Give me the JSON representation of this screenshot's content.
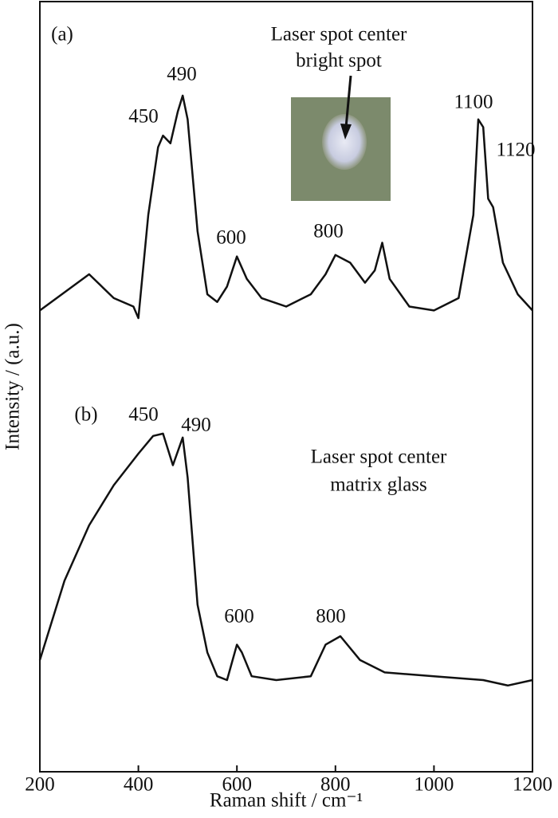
{
  "chart_data": {
    "type": "line",
    "x_label": "Raman shift / cm⁻¹",
    "y_label": "Intensity / (a.u.)",
    "xlim": [
      200,
      1200
    ],
    "xticks": [
      200,
      400,
      600,
      800,
      1000,
      1200
    ],
    "ylim": [
      0,
      100
    ],
    "series": [
      {
        "color": "#111111",
        "x": [
          200,
          300,
          350,
          390,
          400,
          420,
          440,
          450,
          465,
          480,
          490,
          500,
          520,
          540,
          560,
          580,
          600,
          620,
          650,
          700,
          750,
          780,
          800,
          830,
          860,
          880,
          895,
          910,
          950,
          1000,
          1050,
          1080,
          1090,
          1100,
          1110,
          1120,
          1140,
          1170,
          1200
        ],
        "values": [
          59.9,
          64.6,
          61.5,
          60.4,
          58.9,
          72.3,
          81.1,
          82.6,
          81.6,
          85.7,
          87.8,
          84.7,
          70.2,
          62.0,
          61.0,
          63.0,
          66.9,
          64.0,
          61.5,
          60.4,
          62.0,
          64.6,
          67.1,
          66.1,
          63.5,
          65.1,
          68.7,
          64.0,
          60.4,
          59.9,
          61.5,
          72.3,
          84.7,
          83.7,
          74.4,
          73.3,
          66.1,
          62.0,
          59.9
        ]
      },
      {
        "color": "#111111",
        "x": [
          200,
          250,
          300,
          350,
          400,
          430,
          450,
          470,
          490,
          500,
          520,
          540,
          560,
          580,
          600,
          610,
          630,
          680,
          750,
          780,
          810,
          850,
          900,
          1000,
          1100,
          1150,
          1200
        ],
        "values": [
          14.5,
          24.8,
          32.0,
          37.2,
          41.3,
          43.6,
          43.9,
          39.8,
          43.4,
          38.2,
          21.7,
          15.5,
          12.4,
          11.9,
          16.5,
          15.5,
          12.4,
          11.9,
          12.4,
          16.5,
          17.6,
          14.5,
          12.9,
          12.4,
          11.9,
          11.2,
          11.9
        ]
      }
    ],
    "annotations": [
      "(a)",
      "450",
      "490",
      "600",
      "800",
      "1100",
      "1120",
      "Laser spot center",
      "bright spot",
      "(b)",
      "450",
      "490",
      "Laser spot center",
      "matrix glass",
      "600",
      "800"
    ]
  }
}
